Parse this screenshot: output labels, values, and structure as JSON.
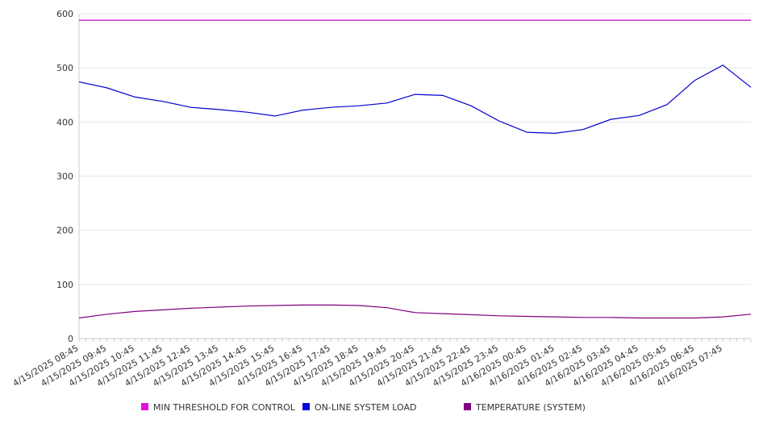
{
  "chart_data": {
    "type": "line",
    "title": "",
    "xlabel": "",
    "ylabel": "",
    "ylim": [
      0,
      600
    ],
    "yticks": [
      0,
      100,
      200,
      300,
      400,
      500,
      600
    ],
    "grid": "horizontal",
    "legend_position": "bottom",
    "x_tick_labels": [
      "4/15/2025 08:45",
      "4/15/2025 09:45",
      "4/15/2025 10:45",
      "4/15/2025 11:45",
      "4/15/2025 12:45",
      "4/15/2025 13:45",
      "4/15/2025 14:45",
      "4/15/2025 15:45",
      "4/15/2025 16:45",
      "4/15/2025 17:45",
      "4/15/2025 18:45",
      "4/15/2025 19:45",
      "4/15/2025 20:45",
      "4/15/2025 21:45",
      "4/15/2025 22:45",
      "4/15/2025 23:45",
      "4/16/2025 00:45",
      "4/16/2025 01:45",
      "4/16/2025 02:45",
      "4/16/2025 03:45",
      "4/16/2025 04:45",
      "4/16/2025 05:45",
      "4/16/2025 06:45",
      "4/16/2025 07:45"
    ],
    "x_sample_times": [
      "4/15/2025 08:45",
      "4/15/2025 09:45",
      "4/15/2025 10:45",
      "4/15/2025 11:45",
      "4/15/2025 12:45",
      "4/15/2025 13:45",
      "4/15/2025 14:45",
      "4/15/2025 15:45",
      "4/15/2025 16:45",
      "4/15/2025 17:45",
      "4/15/2025 18:45",
      "4/15/2025 19:45",
      "4/15/2025 20:45",
      "4/15/2025 21:45",
      "4/15/2025 22:45",
      "4/15/2025 23:45",
      "4/16/2025 00:45",
      "4/16/2025 01:45",
      "4/16/2025 02:45",
      "4/16/2025 03:45",
      "4/16/2025 04:45",
      "4/16/2025 05:45",
      "4/16/2025 06:45",
      "4/16/2025 07:45",
      "4/16/2025 08:45"
    ],
    "series": [
      {
        "name": "MIN THRESHOLD FOR CONTROL",
        "color": "#e010e0",
        "line_color": "#c000c0",
        "values": [
          588,
          588,
          588,
          588,
          588,
          588,
          588,
          588,
          588,
          588,
          588,
          588,
          588,
          588,
          588,
          588,
          588,
          588,
          588,
          588,
          588,
          588,
          588,
          588,
          588
        ]
      },
      {
        "name": "ON-LINE SYSTEM LOAD",
        "color": "#0000dd",
        "line_color": "#0000cc",
        "values": [
          474,
          463,
          446,
          438,
          427,
          423,
          418,
          411,
          422,
          427,
          430,
          435,
          451,
          449,
          430,
          402,
          381,
          379,
          386,
          405,
          412,
          432,
          477,
          505,
          464
        ]
      },
      {
        "name": "TEMPERATURE (SYSTEM)",
        "color": "#800080",
        "line_color": "#800080",
        "values": [
          38,
          45,
          50,
          53,
          56,
          58,
          60,
          61,
          62,
          62,
          61,
          57,
          48,
          46,
          44,
          42,
          41,
          40,
          39,
          39,
          38,
          38,
          38,
          40,
          45
        ]
      }
    ]
  }
}
